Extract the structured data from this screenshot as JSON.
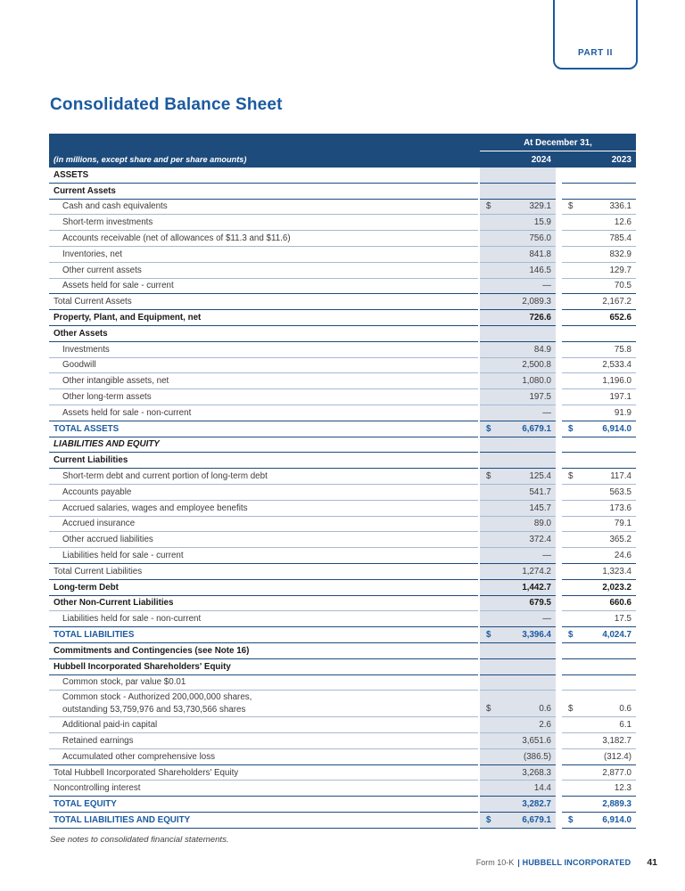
{
  "colors": {
    "navy": "#1d4b7c",
    "accent_blue": "#1b5aa0",
    "column_shade": "#dde2eb",
    "light_border": "#a6bad1",
    "body_text": "#3c3c3c",
    "dark_text": "#1a1a1a"
  },
  "page": {
    "part_label": "PART II",
    "title": "Consolidated Balance Sheet",
    "footnote": "See notes to consolidated financial statements.",
    "footer": {
      "form": "Form 10-K",
      "separator": "|",
      "company": "HUBBELL INCORPORATED",
      "page_number": "41"
    }
  },
  "table": {
    "currency_symbol": "$",
    "header": {
      "date_label": "At December 31,",
      "caption": "(in millions, except share and per share amounts)",
      "col_2024": "2024",
      "col_2023": "2023"
    },
    "rows": [
      {
        "label": "ASSETS",
        "style": "section",
        "border": "dark",
        "dollar": false,
        "v24": "",
        "v23": ""
      },
      {
        "label": "Current Assets",
        "style": "section",
        "border": "dark",
        "dollar": false,
        "v24": "",
        "v23": ""
      },
      {
        "label": "Cash and cash equivalents",
        "style": "item",
        "border": "light",
        "dollar": true,
        "v24": "329.1",
        "v23": "336.1"
      },
      {
        "label": "Short-term investments",
        "style": "item",
        "border": "light",
        "dollar": false,
        "v24": "15.9",
        "v23": "12.6"
      },
      {
        "label": "Accounts receivable (net of allowances of $11.3 and $11.6)",
        "style": "item",
        "border": "light",
        "dollar": false,
        "v24": "756.0",
        "v23": "785.4"
      },
      {
        "label": "Inventories, net",
        "style": "item",
        "border": "light",
        "dollar": false,
        "v24": "841.8",
        "v23": "832.9"
      },
      {
        "label": "Other current assets",
        "style": "item",
        "border": "light",
        "dollar": false,
        "v24": "146.5",
        "v23": "129.7"
      },
      {
        "label": "Assets held for sale - current",
        "style": "item",
        "border": "dark",
        "dollar": false,
        "v24": "—",
        "v23": "70.5"
      },
      {
        "label": "Total Current Assets",
        "style": "flush",
        "border": "dark",
        "dollar": false,
        "v24": "2,089.3",
        "v23": "2,167.2"
      },
      {
        "label": "Property, Plant, and Equipment, net",
        "style": "bold",
        "border": "dark",
        "dollar": false,
        "v24": "726.6",
        "v23": "652.6"
      },
      {
        "label": "Other Assets",
        "style": "section",
        "border": "dark",
        "dollar": false,
        "v24": "",
        "v23": ""
      },
      {
        "label": "Investments",
        "style": "item",
        "border": "light",
        "dollar": false,
        "v24": "84.9",
        "v23": "75.8"
      },
      {
        "label": "Goodwill",
        "style": "item",
        "border": "light",
        "dollar": false,
        "v24": "2,500.8",
        "v23": "2,533.4"
      },
      {
        "label": "Other intangible assets, net",
        "style": "item",
        "border": "light",
        "dollar": false,
        "v24": "1,080.0",
        "v23": "1,196.0"
      },
      {
        "label": "Other long-term assets",
        "style": "item",
        "border": "light",
        "dollar": false,
        "v24": "197.5",
        "v23": "197.1"
      },
      {
        "label": "Assets held for sale - non-current",
        "style": "item",
        "border": "dark",
        "dollar": false,
        "v24": "—",
        "v23": "91.9"
      },
      {
        "label": "TOTAL ASSETS",
        "style": "total",
        "border": "dark",
        "dollar": true,
        "v24": "6,679.1",
        "v23": "6,914.0"
      },
      {
        "label": "LIABILITIES AND EQUITY",
        "style": "section-italic",
        "border": "dark",
        "dollar": false,
        "v24": "",
        "v23": ""
      },
      {
        "label": "Current Liabilities",
        "style": "section",
        "border": "dark",
        "dollar": false,
        "v24": "",
        "v23": ""
      },
      {
        "label": "Short-term debt and current portion of long-term debt",
        "style": "item",
        "border": "light",
        "dollar": true,
        "v24": "125.4",
        "v23": "117.4"
      },
      {
        "label": "Accounts payable",
        "style": "item",
        "border": "light",
        "dollar": false,
        "v24": "541.7",
        "v23": "563.5"
      },
      {
        "label": "Accrued salaries, wages and employee benefits",
        "style": "item",
        "border": "light",
        "dollar": false,
        "v24": "145.7",
        "v23": "173.6"
      },
      {
        "label": "Accrued insurance",
        "style": "item",
        "border": "light",
        "dollar": false,
        "v24": "89.0",
        "v23": "79.1"
      },
      {
        "label": "Other accrued liabilities",
        "style": "item",
        "border": "light",
        "dollar": false,
        "v24": "372.4",
        "v23": "365.2"
      },
      {
        "label": "Liabilities held for sale - current",
        "style": "item",
        "border": "dark",
        "dollar": false,
        "v24": "—",
        "v23": "24.6"
      },
      {
        "label": "Total Current Liabilities",
        "style": "flush",
        "border": "dark",
        "dollar": false,
        "v24": "1,274.2",
        "v23": "1,323.4"
      },
      {
        "label": "Long-term Debt",
        "style": "bold",
        "border": "dark",
        "dollar": false,
        "v24": "1,442.7",
        "v23": "2,023.2"
      },
      {
        "label": "Other Non-Current Liabilities",
        "style": "bold",
        "border": "light",
        "dollar": false,
        "v24": "679.5",
        "v23": "660.6"
      },
      {
        "label": "Liabilities held for sale - non-current",
        "style": "item",
        "border": "dark",
        "dollar": false,
        "v24": "—",
        "v23": "17.5"
      },
      {
        "label": "TOTAL LIABILITIES",
        "style": "total",
        "border": "dark",
        "dollar": true,
        "v24": "3,396.4",
        "v23": "4,024.7"
      },
      {
        "label": "Commitments and Contingencies (see Note 16)",
        "style": "section",
        "border": "dark",
        "dollar": false,
        "v24": "",
        "v23": ""
      },
      {
        "label": "Hubbell Incorporated Shareholders' Equity",
        "style": "section",
        "border": "dark",
        "dollar": false,
        "v24": "",
        "v23": ""
      },
      {
        "label": "Common stock, par value $0.01",
        "style": "item",
        "border": "light",
        "dollar": false,
        "v24": "",
        "v23": ""
      },
      {
        "label": "Common stock - Authorized 200,000,000 shares,",
        "label2": "outstanding 53,759,976 and 53,730,566 shares",
        "double": true,
        "style": "item",
        "border": "light",
        "dollar": true,
        "v24": "0.6",
        "v23": "0.6"
      },
      {
        "label": "Additional paid-in capital",
        "style": "item",
        "border": "light",
        "dollar": false,
        "v24": "2.6",
        "v23": "6.1"
      },
      {
        "label": "Retained earnings",
        "style": "item",
        "border": "light",
        "dollar": false,
        "v24": "3,651.6",
        "v23": "3,182.7"
      },
      {
        "label": "Accumulated other comprehensive loss",
        "style": "item",
        "border": "dark",
        "dollar": false,
        "v24": "(386.5)",
        "v23": "(312.4)"
      },
      {
        "label": "Total Hubbell Incorporated Shareholders' Equity",
        "style": "flush",
        "border": "light",
        "dollar": false,
        "v24": "3,268.3",
        "v23": "2,877.0"
      },
      {
        "label": "Noncontrolling interest",
        "style": "flush",
        "border": "dark",
        "dollar": false,
        "v24": "14.4",
        "v23": "12.3"
      },
      {
        "label": "TOTAL EQUITY",
        "style": "total",
        "border": "dark",
        "dollar": false,
        "v24": "3,282.7",
        "v23": "2,889.3"
      },
      {
        "label": "TOTAL LIABILITIES AND EQUITY",
        "style": "total",
        "border": "dark",
        "dollar": true,
        "v24": "6,679.1",
        "v23": "6,914.0"
      }
    ]
  }
}
